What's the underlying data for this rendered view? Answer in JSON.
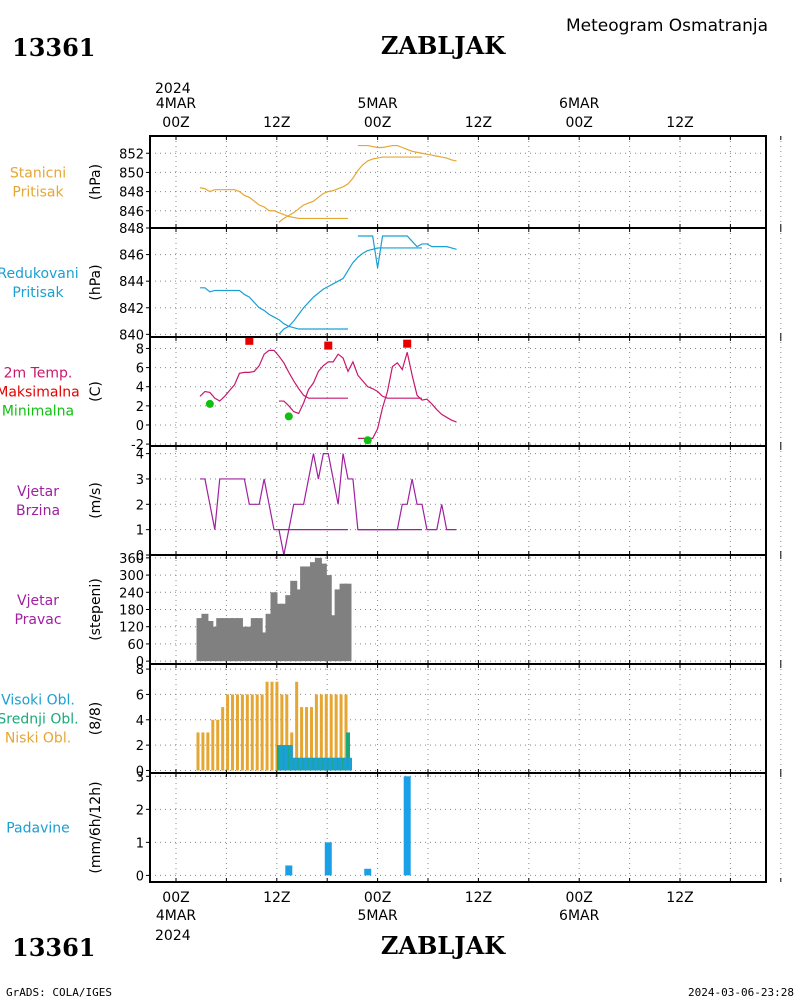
{
  "header": {
    "station_id": "13361",
    "station_name": "ZABLJAK",
    "subtitle": "Meteogram Osmatranja"
  },
  "footer": {
    "credit": "GrADS: COLA/IGES",
    "timestamp": "2024-03-06-23:28"
  },
  "time_axis": {
    "year": "2024",
    "days": [
      "4MAR",
      "5MAR",
      "6MAR"
    ],
    "tick_labels": [
      "00Z",
      "12Z",
      "00Z",
      "12Z",
      "00Z",
      "12Z"
    ]
  },
  "colors": {
    "pressure": "#e6a632",
    "reduced": "#1aa0d2",
    "temp": "#c8186e",
    "max": "#e60000",
    "min": "#10c010",
    "wind": "#a020a0",
    "dir_bar": "#808080",
    "high_cloud": "#1aa0d2",
    "mid_cloud": "#1aaa7a",
    "low_cloud": "#e6a632",
    "precip": "#1aa0e6"
  },
  "chart_data": [
    {
      "type": "line",
      "label_lines": [
        "Stanicni",
        "Pritisak"
      ],
      "ylabel": "(hPa)",
      "ylim": [
        844.2,
        853.8
      ],
      "yticks": [
        846,
        848,
        850,
        852
      ],
      "series": [
        {
          "x": [
            6,
            9,
            12,
            15,
            18,
            21,
            24,
            27,
            30,
            33,
            36,
            39,
            42,
            45,
            48,
            51,
            54,
            57,
            60,
            63,
            66,
            69,
            72,
            75,
            78,
            81,
            84,
            87,
            90,
            93,
            96
          ],
          "y": [
            848.4,
            848.3,
            848.0,
            848.2,
            848.2,
            848.2,
            848.2,
            848.2,
            848.0,
            847.6,
            847.4,
            847.0,
            846.6,
            846.4,
            846.0,
            846.0,
            845.8,
            845.6,
            845.4,
            845.3,
            845.2,
            845.2,
            845.2,
            845.2,
            845.2,
            845.2,
            845.2,
            845.2,
            845.2,
            845.2,
            845.2
          ]
        },
        {
          "x": [
            54,
            57,
            60,
            63,
            66,
            69,
            72,
            75,
            78,
            81,
            84,
            87,
            90,
            93,
            96,
            99,
            102,
            105,
            108,
            111,
            114,
            117,
            120,
            123,
            126,
            129,
            132,
            135,
            138,
            141
          ],
          "y": [
            844.8,
            845.2,
            845.5,
            845.8,
            846.2,
            846.6,
            846.8,
            847.0,
            847.4,
            847.8,
            848.0,
            848.1,
            848.3,
            848.5,
            848.8,
            849.4,
            850.2,
            850.8,
            851.2,
            851.4,
            851.5,
            851.6,
            851.6,
            851.6,
            851.6,
            851.6,
            851.6,
            851.6,
            851.6,
            851.6
          ]
        },
        {
          "x": [
            102,
            105,
            108,
            111,
            114,
            117,
            120,
            123,
            126,
            129,
            132,
            135,
            138,
            141,
            144,
            147,
            150,
            153,
            156,
            159,
            162
          ],
          "y": [
            852.8,
            852.8,
            852.8,
            852.7,
            852.6,
            852.6,
            852.7,
            852.8,
            852.8,
            852.6,
            852.4,
            852.2,
            852.1,
            852.0,
            851.9,
            851.8,
            851.7,
            851.6,
            851.5,
            851.3,
            851.2
          ]
        }
      ]
    },
    {
      "type": "line",
      "label_lines": [
        "Redukovani",
        "Pritisak"
      ],
      "ylabel": "(hPa)",
      "ylim": [
        839.8,
        848.0
      ],
      "yticks": [
        840,
        842,
        844,
        846,
        848
      ],
      "series": [
        {
          "x": [
            6,
            9,
            12,
            15,
            18,
            21,
            24,
            27,
            30,
            33,
            36,
            39,
            42,
            45,
            48,
            51,
            54,
            57,
            60,
            63,
            66,
            69,
            72,
            75,
            78,
            81,
            84,
            87,
            90,
            93,
            96
          ],
          "y": [
            843.5,
            843.5,
            843.2,
            843.3,
            843.3,
            843.3,
            843.3,
            843.3,
            843.3,
            843.0,
            842.8,
            842.4,
            842.0,
            841.8,
            841.5,
            841.3,
            841.1,
            840.8,
            840.6,
            840.5,
            840.4,
            840.4,
            840.4,
            840.4,
            840.4,
            840.4,
            840.4,
            840.4,
            840.4,
            840.4,
            840.4
          ]
        },
        {
          "x": [
            54,
            57,
            60,
            63,
            66,
            69,
            72,
            75,
            78,
            81,
            84,
            87,
            90,
            93,
            96,
            99,
            102,
            105,
            108,
            111,
            114,
            117,
            120,
            123,
            126,
            129,
            132,
            135,
            138,
            141
          ],
          "y": [
            840.0,
            840.4,
            840.6,
            841.0,
            841.5,
            842.0,
            842.4,
            842.8,
            843.1,
            843.4,
            843.6,
            843.8,
            844.0,
            844.2,
            844.8,
            845.4,
            845.8,
            846.1,
            846.3,
            846.4,
            846.5,
            846.5,
            846.5,
            846.5,
            846.5,
            846.5,
            846.5,
            846.5,
            846.5,
            846.5
          ]
        },
        {
          "x": [
            102,
            105,
            108,
            111,
            114,
            117,
            120,
            123,
            126,
            129,
            132,
            135,
            138,
            141,
            144,
            147,
            150,
            153,
            156,
            159,
            162
          ],
          "y": [
            847.4,
            847.4,
            847.4,
            847.4,
            845.0,
            847.4,
            847.4,
            847.4,
            847.4,
            847.4,
            847.4,
            847.0,
            846.6,
            846.8,
            846.8,
            846.6,
            846.6,
            846.6,
            846.6,
            846.5,
            846.4
          ]
        }
      ]
    },
    {
      "type": "line",
      "label_lines": [
        "2m Temp.",
        "Maksimalna",
        "Minimalna"
      ],
      "ylabel": "(C)",
      "ylim": [
        -2.2,
        9.2
      ],
      "yticks": [
        -2,
        0,
        2,
        4,
        6,
        8
      ],
      "series": [
        {
          "x": [
            6,
            9,
            12,
            15,
            18,
            21,
            24,
            27,
            30,
            33,
            36,
            39,
            42,
            45,
            48,
            51,
            54,
            57,
            60,
            63,
            66,
            69,
            72,
            75,
            78,
            81,
            84,
            87,
            90,
            93,
            96
          ],
          "y": [
            3.0,
            3.5,
            3.4,
            2.8,
            2.5,
            3.0,
            3.6,
            4.2,
            5.4,
            5.5,
            5.5,
            5.6,
            6.2,
            7.4,
            7.8,
            7.8,
            7.2,
            6.5,
            5.5,
            4.6,
            3.8,
            3.1,
            2.8,
            2.8,
            2.8,
            2.8,
            2.8,
            2.8,
            2.8,
            2.8,
            2.8
          ]
        },
        {
          "x": [
            54,
            57,
            60,
            63,
            66,
            69,
            72,
            75,
            78,
            81,
            84,
            87,
            90,
            93,
            96,
            99,
            102,
            105,
            108,
            111,
            114,
            117,
            120,
            123,
            126,
            129,
            132,
            135,
            138,
            141
          ],
          "y": [
            2.5,
            2.5,
            2.0,
            1.4,
            1.2,
            2.3,
            3.7,
            4.4,
            5.6,
            6.2,
            6.6,
            6.6,
            7.4,
            7.0,
            5.6,
            6.6,
            5.2,
            4.6,
            4.0,
            3.8,
            3.5,
            3.0,
            2.8,
            2.8,
            2.8,
            2.8,
            2.8,
            2.8,
            2.8,
            2.8
          ]
        },
        {
          "x": [
            102,
            105,
            108,
            111,
            114,
            117,
            120,
            123,
            126,
            129,
            132,
            135,
            138,
            141,
            144,
            147,
            150,
            153,
            156,
            159,
            162
          ],
          "y": [
            -1.4,
            -1.4,
            -1.4,
            -1.4,
            -0.4,
            1.8,
            3.5,
            6.1,
            6.5,
            5.8,
            7.6,
            5.2,
            3.1,
            2.6,
            2.7,
            2.2,
            1.6,
            1.1,
            0.8,
            0.5,
            0.3
          ]
        }
      ],
      "max_points": [
        {
          "x": 36,
          "y": 8.8
        },
        {
          "x": 84,
          "y": 8.3
        },
        {
          "x": 132,
          "y": 8.5
        }
      ],
      "min_points": [
        {
          "x": 12,
          "y": 2.2
        },
        {
          "x": 60,
          "y": 0.9
        },
        {
          "x": 108,
          "y": -1.6
        }
      ]
    },
    {
      "type": "line",
      "label_lines": [
        "Vjetar",
        "Brzina"
      ],
      "ylabel": "(m/s)",
      "ylim": [
        0,
        4.3
      ],
      "yticks": [
        0,
        1,
        2,
        3,
        4
      ],
      "series": [
        {
          "x": [
            6,
            9,
            12,
            15,
            18,
            21,
            24,
            27,
            30,
            33,
            36,
            39,
            42,
            45,
            48,
            51,
            54,
            57,
            60,
            63,
            66,
            69,
            72,
            75,
            78,
            81,
            84,
            87,
            90,
            93,
            96
          ],
          "y": [
            3,
            3,
            2,
            1,
            3,
            3,
            3,
            3,
            3,
            3,
            2,
            2,
            2,
            3,
            2,
            1,
            1,
            1,
            1,
            1,
            1,
            1,
            1,
            1,
            1,
            1,
            1,
            1,
            1,
            1,
            1
          ]
        },
        {
          "x": [
            54,
            57,
            60,
            63,
            66,
            69,
            72,
            75,
            78,
            81,
            84,
            87,
            90,
            93,
            96,
            99,
            102,
            105,
            108,
            111,
            114,
            117,
            120,
            123,
            126,
            129,
            132,
            135,
            138,
            141
          ],
          "y": [
            1,
            0,
            1,
            2,
            2,
            2,
            3,
            4,
            3,
            4,
            4,
            3,
            2,
            4,
            3,
            3,
            1,
            1,
            1,
            1,
            1,
            1,
            1,
            1,
            1,
            1,
            1,
            1,
            1,
            1
          ]
        },
        {
          "x": [
            102,
            105,
            108,
            111,
            114,
            117,
            120,
            123,
            126,
            129,
            132,
            135,
            138,
            141,
            144,
            147,
            150,
            153,
            156,
            159,
            162
          ],
          "y": [
            1,
            1,
            1,
            1,
            1,
            1,
            1,
            1,
            1,
            2,
            2,
            3,
            2,
            2,
            1,
            1,
            1,
            2,
            1,
            1,
            1
          ]
        }
      ]
    },
    {
      "type": "bar",
      "label_lines": [
        "Vjetar",
        "Pravac"
      ],
      "ylabel": "(stepeni)",
      "ylim": [
        -10,
        370
      ],
      "yticks": [
        0,
        60,
        120,
        180,
        240,
        300,
        360
      ],
      "series": [
        {
          "x": [
            6,
            9,
            12,
            15,
            18,
            21,
            24,
            27,
            30,
            33,
            36,
            39,
            42,
            45,
            48,
            51,
            54,
            57,
            60,
            63,
            66,
            69,
            72,
            75,
            78,
            81,
            84,
            87,
            90,
            93,
            96
          ],
          "y": [
            150,
            165,
            140,
            120,
            150,
            150,
            150,
            150,
            150,
            120,
            120,
            150,
            150,
            100,
            165,
            240,
            200,
            200,
            230,
            280,
            250,
            330,
            330,
            345,
            360,
            340,
            300,
            160,
            250,
            270,
            270
          ]
        }
      ]
    },
    {
      "type": "bar",
      "label_lines": [
        "Visoki Obl.",
        "Srednji Obl.",
        "Niski Obl."
      ],
      "ylabel": "(8/8)",
      "ylim": [
        -0.2,
        8.4
      ],
      "yticks": [
        0,
        2,
        4,
        6,
        8
      ],
      "series": [
        {
          "name": "Niski Obl.",
          "x": [
            6,
            9,
            12,
            15,
            18,
            21,
            24,
            27,
            30,
            33,
            36,
            39,
            42,
            45,
            48,
            51,
            54,
            57,
            60,
            63,
            66,
            69,
            72,
            75,
            78,
            81,
            84,
            87,
            90,
            93,
            96
          ],
          "y": [
            3,
            3,
            3,
            4,
            4,
            5,
            6,
            6,
            6,
            6,
            6,
            6,
            6,
            6,
            7,
            7,
            7,
            6,
            6,
            3,
            7,
            5,
            5,
            5,
            6,
            6,
            6,
            6,
            6,
            6,
            6
          ]
        },
        {
          "name": "Srednji Obl.",
          "x": [
            54,
            57,
            60,
            63,
            66,
            69,
            72,
            75,
            78,
            81,
            84,
            87,
            90,
            93,
            96
          ],
          "y": [
            2,
            2,
            2,
            1,
            1,
            1,
            1,
            1,
            1,
            1,
            1,
            1,
            1,
            1,
            3
          ]
        },
        {
          "name": "Visoki Obl.",
          "x": [
            54,
            57,
            60,
            63,
            66,
            69,
            72,
            75,
            78,
            81,
            84,
            87,
            90,
            93,
            96
          ],
          "y": [
            2,
            2,
            2,
            1,
            1,
            1,
            1,
            1,
            1,
            1,
            1,
            1,
            1,
            1,
            1
          ]
        }
      ]
    },
    {
      "type": "bar",
      "label_lines": [
        "Padavine"
      ],
      "ylabel": "(mm/6h/12h)",
      "ylim": [
        -0.2,
        3.1
      ],
      "yticks": [
        0,
        1,
        2,
        3
      ],
      "series": [
        {
          "x": [
            60,
            84,
            108,
            132
          ],
          "y": [
            0.3,
            1.0,
            0.2,
            3.0
          ]
        }
      ]
    }
  ]
}
